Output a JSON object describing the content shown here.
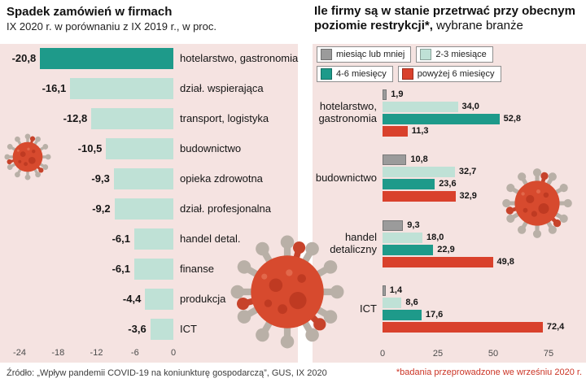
{
  "chart_data": [
    {
      "type": "bar",
      "orientation": "horizontal",
      "title": "Spadek zamówień w firmach",
      "subtitle": "IX 2020 r. w porównaniu z IX 2019 r., w proc.",
      "categories": [
        "hotelarstwo, gastronomia",
        "dział. wspierająca",
        "transport, logistyka",
        "budownictwo",
        "opieka zdrowotna",
        "dział. profesjonalna",
        "handel detal.",
        "finanse",
        "produkcja",
        "ICT"
      ],
      "values": [
        -20.8,
        -16.1,
        -12.8,
        -10.5,
        -9.3,
        -9.2,
        -6.1,
        -6.1,
        -4.4,
        -3.6
      ],
      "value_labels": [
        "-20,8",
        "-16,1",
        "-12,8",
        "-10,5",
        "-9,3",
        "-9,2",
        "-6,1",
        "-6,1",
        "-4,4",
        "-3,6"
      ],
      "x_ticks": [
        -24,
        -18,
        -12,
        -6,
        0
      ],
      "x_tick_labels": [
        "-24",
        "-18",
        "-12",
        "-6",
        "0"
      ],
      "xlim": [
        -24,
        0
      ],
      "colors": {
        "first_bar": "#1e9a8a",
        "other_bars": "#bfe1d6"
      },
      "source": "Źródło: „Wpływ pandemii COVID-19 na koniunkturę gospodarczą”, GUS, IX 2020"
    },
    {
      "type": "bar",
      "orientation": "horizontal",
      "grouped": true,
      "title_bold": "Ile firmy są w stanie przetrwać przy obecnym poziomie restrykcji*,",
      "title_regular": " wybrane branże",
      "legend": [
        {
          "label": "miesiąc lub mniej",
          "color": "#9b9b9b"
        },
        {
          "label": "2-3 miesiące",
          "color": "#bfe1d6"
        },
        {
          "label": "4-6 miesięcy",
          "color": "#1e9a8a"
        },
        {
          "label": "powyżej 6 miesięcy",
          "color": "#d9412c"
        }
      ],
      "categories": [
        "hotelarstwo, gastronomia",
        "budownictwo",
        "handel detaliczny",
        "ICT"
      ],
      "category_lines": [
        [
          "hotelarstwo,",
          "gastronomia"
        ],
        [
          "budownictwo"
        ],
        [
          "handel",
          "detaliczny"
        ],
        [
          "ICT"
        ]
      ],
      "series": [
        {
          "name": "miesiąc lub mniej",
          "values": [
            1.9,
            10.8,
            9.3,
            1.4
          ],
          "labels": [
            "1,9",
            "10,8",
            "9,3",
            "1,4"
          ]
        },
        {
          "name": "2-3 miesiące",
          "values": [
            34.0,
            32.7,
            18.0,
            8.6
          ],
          "labels": [
            "34,0",
            "32,7",
            "18,0",
            "8,6"
          ]
        },
        {
          "name": "4-6 miesięcy",
          "values": [
            52.8,
            23.6,
            22.9,
            17.6
          ],
          "labels": [
            "52,8",
            "23,6",
            "22,9",
            "17,6"
          ]
        },
        {
          "name": "powyżej 6 miesięcy",
          "values": [
            11.3,
            32.9,
            49.8,
            72.4
          ],
          "labels": [
            "11,3",
            "32,9",
            "49,8",
            "72,4"
          ]
        }
      ],
      "x_ticks": [
        0,
        25,
        50,
        75
      ],
      "x_tick_labels": [
        "0",
        "25",
        "50",
        "75"
      ],
      "xlim": [
        0,
        75
      ],
      "footnote": "*badania przeprowadzone we wrześniu 2020 r."
    }
  ]
}
